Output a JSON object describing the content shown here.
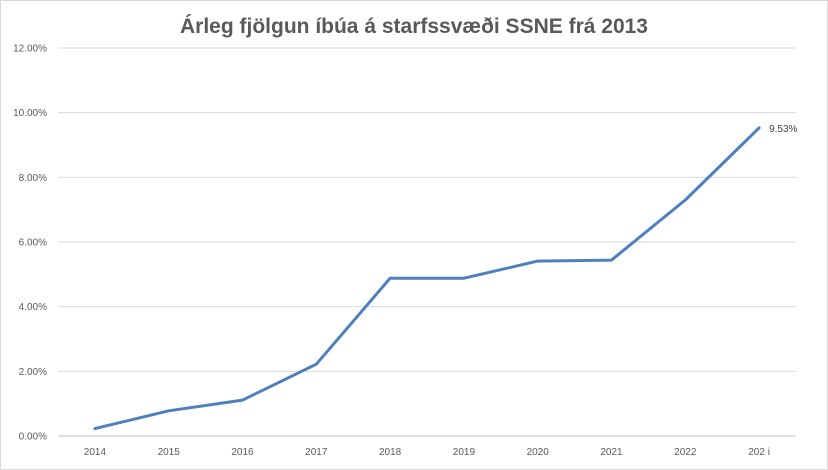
{
  "chart_data": {
    "type": "line",
    "title": "Árleg fjölgun íbúa á starfssvæði SSNE frá 2013",
    "categories": [
      "2014",
      "2015",
      "2016",
      "2017",
      "2018",
      "2019",
      "2020",
      "2021",
      "2022",
      "202 i"
    ],
    "series": [
      {
        "values": [
          0.0023,
          0.0078,
          0.0111,
          0.0222,
          0.0488,
          0.0488,
          0.0541,
          0.0544,
          0.073,
          0.0953
        ],
        "color": "#4f7fbd"
      }
    ],
    "ylim": [
      0,
      0.12
    ],
    "yticks": [
      {
        "value": 0.0,
        "label": "0.00%"
      },
      {
        "value": 0.02,
        "label": "2.00%"
      },
      {
        "value": 0.04,
        "label": "4.00%"
      },
      {
        "value": 0.06,
        "label": "6.00%"
      },
      {
        "value": 0.08,
        "label": "8.00%"
      },
      {
        "value": 0.1,
        "label": "10.00%"
      },
      {
        "value": 0.12,
        "label": "12.00%"
      }
    ],
    "data_labels": [
      {
        "index": 9,
        "text": "9.53%"
      }
    ],
    "grid": true,
    "legend": "none",
    "xlabel": "",
    "ylabel": ""
  }
}
